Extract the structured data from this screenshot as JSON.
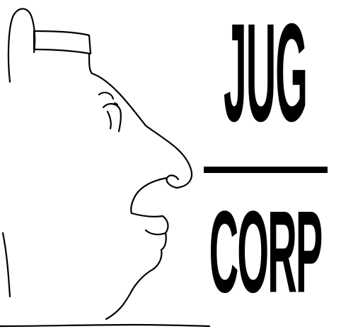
{
  "logo": {
    "word_top": "JUG",
    "word_bottom": "CORP",
    "drawing_icon": "face-profile-line-drawing-icon",
    "ink_color": "#000000",
    "background_color": "#ffffff"
  }
}
